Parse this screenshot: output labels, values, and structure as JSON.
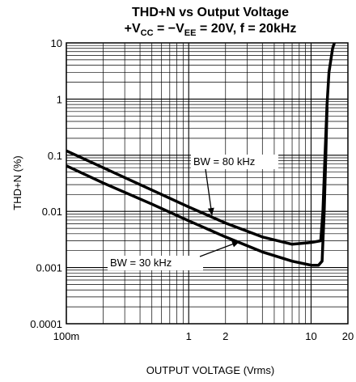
{
  "chart_data": {
    "type": "line",
    "title": {
      "line1": "THD+N vs Output Voltage",
      "line2_parts": [
        "+V",
        "CC",
        " = −V",
        "EE",
        " = 20V, f = 20kHz"
      ]
    },
    "xlabel": "OUTPUT VOLTAGE (Vrms)",
    "ylabel": "THD+N (%)",
    "x_scale": "log",
    "y_scale": "log",
    "xlim": [
      0.1,
      20
    ],
    "ylim": [
      0.0001,
      10
    ],
    "x_ticks": [
      {
        "value": 0.1,
        "label": "100m"
      },
      {
        "value": 1,
        "label": "1"
      },
      {
        "value": 2,
        "label": "2"
      },
      {
        "value": 10,
        "label": "10"
      },
      {
        "value": 20,
        "label": "20"
      }
    ],
    "y_ticks": [
      {
        "value": 0.0001,
        "label": "0.0001"
      },
      {
        "value": 0.001,
        "label": "0.001"
      },
      {
        "value": 0.01,
        "label": "0.01"
      },
      {
        "value": 0.1,
        "label": "0.1"
      },
      {
        "value": 1,
        "label": "1"
      },
      {
        "value": 10,
        "label": "10"
      }
    ],
    "grid": true,
    "series": [
      {
        "name": "BW = 80 kHz",
        "color": "#000000",
        "points": [
          [
            0.1,
            0.12
          ],
          [
            0.2,
            0.06
          ],
          [
            0.5,
            0.024
          ],
          [
            1,
            0.012
          ],
          [
            2,
            0.0062
          ],
          [
            4,
            0.0035
          ],
          [
            7,
            0.0026
          ],
          [
            10,
            0.0028
          ],
          [
            12,
            0.003
          ],
          [
            12.5,
            0.01
          ],
          [
            13,
            0.1
          ],
          [
            13.5,
            0.8
          ],
          [
            14,
            3
          ],
          [
            15,
            8
          ],
          [
            15.5,
            10
          ]
        ]
      },
      {
        "name": "BW = 30 kHz",
        "color": "#000000",
        "points": [
          [
            0.1,
            0.065
          ],
          [
            0.2,
            0.032
          ],
          [
            0.5,
            0.0135
          ],
          [
            1,
            0.0068
          ],
          [
            2,
            0.0035
          ],
          [
            4,
            0.0019
          ],
          [
            7,
            0.0013
          ],
          [
            10,
            0.0011
          ],
          [
            11.5,
            0.0011
          ],
          [
            12.3,
            0.0013
          ],
          [
            12.8,
            0.01
          ],
          [
            13.2,
            0.1
          ],
          [
            13.5,
            0.7
          ]
        ]
      }
    ],
    "annotations": [
      {
        "text": "BW = 80 kHz",
        "series": "BW = 80 kHz"
      },
      {
        "text": "BW = 30 kHz",
        "series": "BW = 30 kHz"
      }
    ]
  }
}
